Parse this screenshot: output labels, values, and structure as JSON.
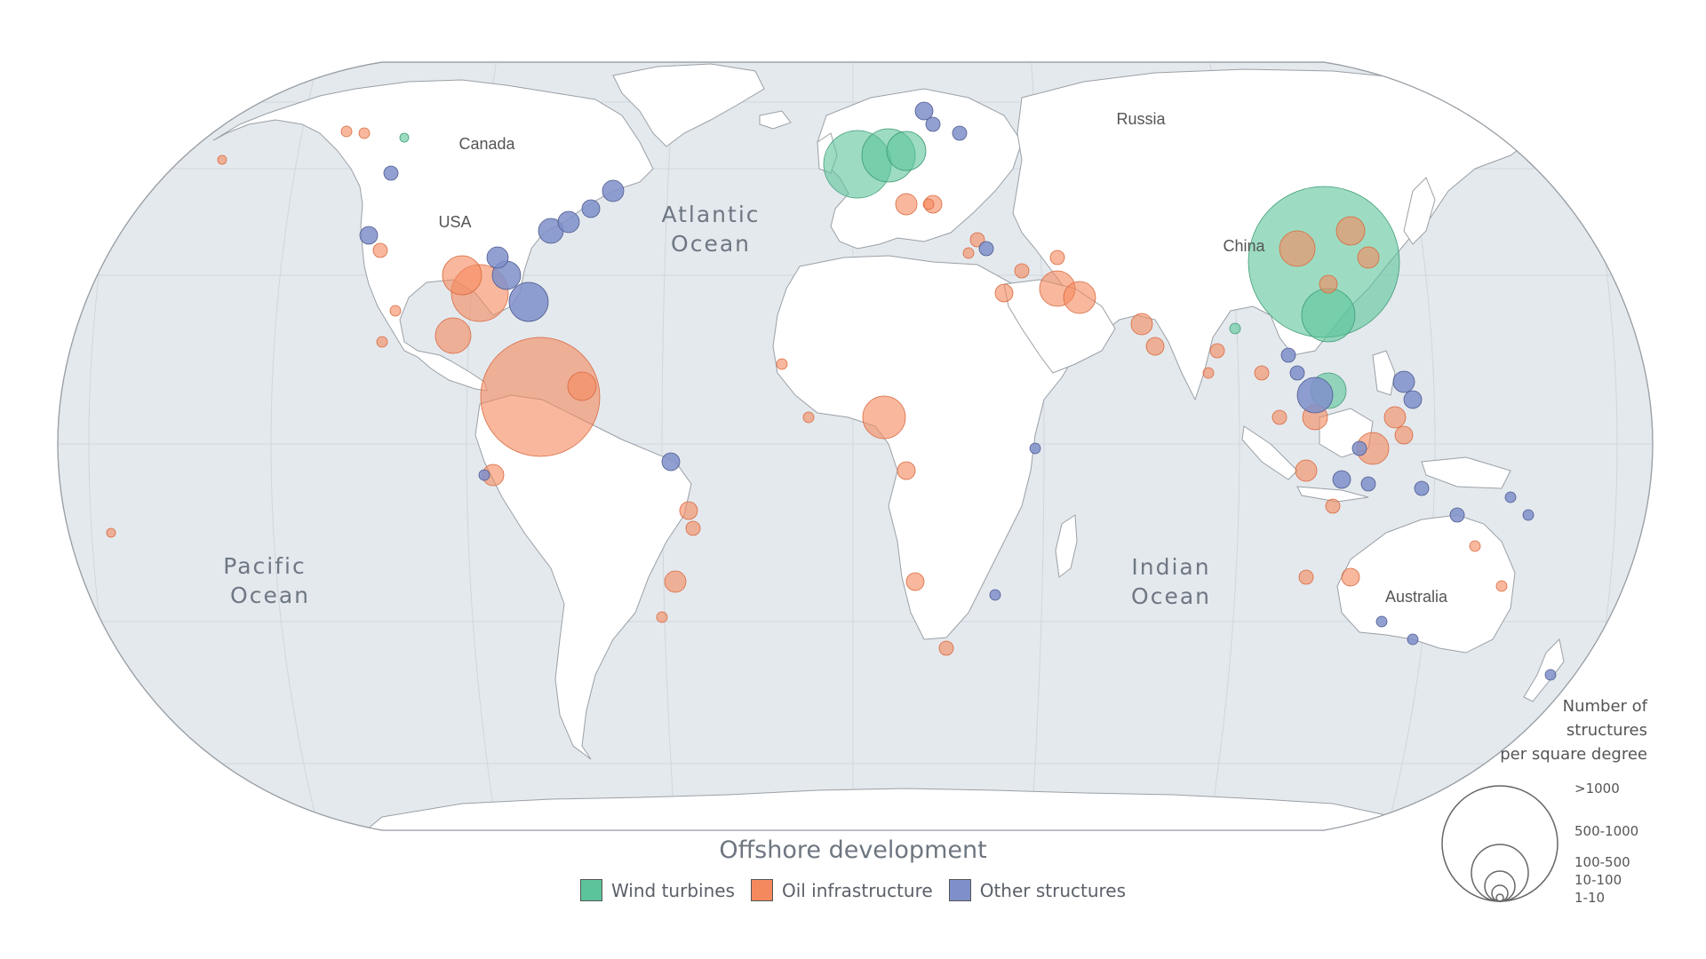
{
  "map": {
    "country_labels": {
      "canada": "Canada",
      "usa": "USA",
      "russia": "Russia",
      "china": "China",
      "australia": "Australia"
    },
    "ocean_labels": {
      "atlantic_line1": "Atlantic",
      "atlantic_line2": "Ocean",
      "pacific_line1": "Pacific",
      "pacific_line2": "Ocean",
      "indian_line1": "Indian",
      "indian_line2": "Ocean"
    },
    "colors": {
      "ocean": "#e4e9ee",
      "land": "#ffffff",
      "border": "#9aa0a6",
      "graticule": "#cfd6dd",
      "wind": "#5cc49a",
      "oil": "#f5895e",
      "other": "#7f8fc9"
    }
  },
  "legend": {
    "title": "Offshore development",
    "items": [
      {
        "label": "Wind turbines",
        "color": "#5cc49a"
      },
      {
        "label": "Oil infrastructure",
        "color": "#f5895e"
      },
      {
        "label": "Other structures",
        "color": "#7f8fc9"
      }
    ]
  },
  "size_legend": {
    "title": "Number of\nstructures\nper square degree",
    "classes": [
      ">1000",
      "500-1000",
      "100-500",
      "10-100",
      "1-10"
    ]
  }
}
